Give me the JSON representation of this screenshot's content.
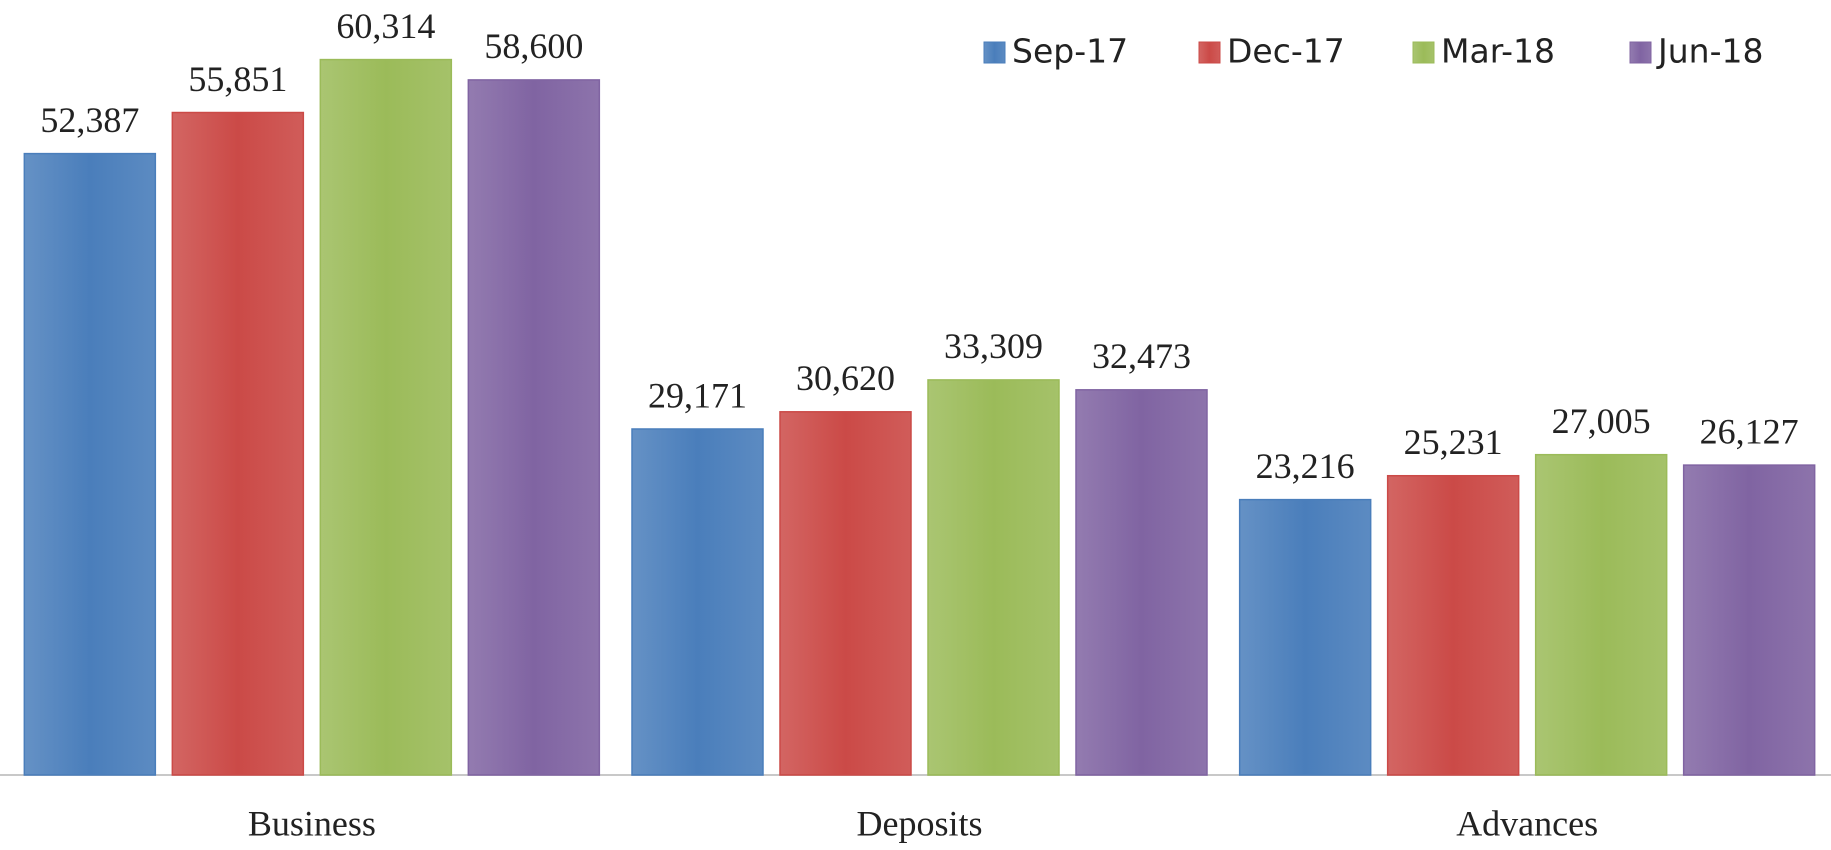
{
  "chart_data": {
    "type": "bar",
    "categories": [
      "Business",
      "Deposits",
      "Advances"
    ],
    "series": [
      {
        "name": "Sep-17",
        "color": "#4a7ebb",
        "values": [
          52387,
          29171,
          23216
        ],
        "value_labels": [
          "52,387",
          "29,171",
          "23,216"
        ]
      },
      {
        "name": "Dec-17",
        "color": "#cb4a47",
        "values": [
          55851,
          30620,
          25231
        ],
        "value_labels": [
          "55,851",
          "30,620",
          "25,231"
        ]
      },
      {
        "name": "Mar-18",
        "color": "#9bbb59",
        "values": [
          60314,
          33309,
          27005
        ],
        "value_labels": [
          "60,314",
          "33,309",
          "27,005"
        ]
      },
      {
        "name": "Jun-18",
        "color": "#8064a2",
        "values": [
          58600,
          32473,
          26127
        ],
        "value_labels": [
          "58,600",
          "32,473",
          "26,127"
        ]
      }
    ],
    "ylim": [
      0,
      65000
    ],
    "legend": "top-right"
  }
}
